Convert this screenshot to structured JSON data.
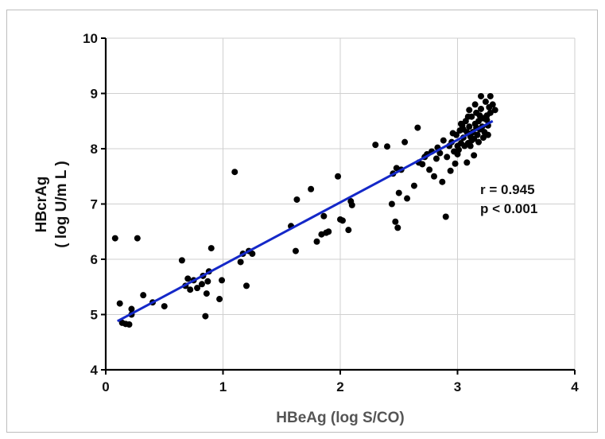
{
  "chart_data": {
    "type": "scatter",
    "xlabel": "HBeAg (log S/CO)",
    "ylabel_line1": "HBcrAg",
    "ylabel_line2": "( log U/m L )",
    "xlim": [
      0,
      4
    ],
    "ylim": [
      4,
      10
    ],
    "x_ticks": [
      "0",
      "1",
      "2",
      "3",
      "4"
    ],
    "y_ticks": [
      "4",
      "5",
      "6",
      "7",
      "8",
      "9",
      "10"
    ],
    "grid": true,
    "annotation_r": "r = 0.945",
    "annotation_p": "p < 0.001",
    "line_color": "#1428c8",
    "point_color": "#000000",
    "regression": {
      "x": [
        0.1,
        3.3
      ],
      "y": [
        4.88,
        8.5
      ]
    },
    "points": [
      [
        0.08,
        6.38
      ],
      [
        0.12,
        5.2
      ],
      [
        0.14,
        4.85
      ],
      [
        0.17,
        4.83
      ],
      [
        0.2,
        4.82
      ],
      [
        0.22,
        5.0
      ],
      [
        0.22,
        5.1
      ],
      [
        0.27,
        6.38
      ],
      [
        0.32,
        5.35
      ],
      [
        0.4,
        5.22
      ],
      [
        0.5,
        5.15
      ],
      [
        0.65,
        5.98
      ],
      [
        0.68,
        5.52
      ],
      [
        0.7,
        5.65
      ],
      [
        0.72,
        5.45
      ],
      [
        0.75,
        5.62
      ],
      [
        0.78,
        5.48
      ],
      [
        0.82,
        5.55
      ],
      [
        0.83,
        5.7
      ],
      [
        0.85,
        4.97
      ],
      [
        0.86,
        5.38
      ],
      [
        0.87,
        5.6
      ],
      [
        0.88,
        5.78
      ],
      [
        0.9,
        6.2
      ],
      [
        0.97,
        5.28
      ],
      [
        0.99,
        5.62
      ],
      [
        1.1,
        7.58
      ],
      [
        1.15,
        5.95
      ],
      [
        1.17,
        6.1
      ],
      [
        1.2,
        5.52
      ],
      [
        1.22,
        6.15
      ],
      [
        1.25,
        6.1
      ],
      [
        1.58,
        6.6
      ],
      [
        1.62,
        6.15
      ],
      [
        1.63,
        7.08
      ],
      [
        1.75,
        7.27
      ],
      [
        1.8,
        6.32
      ],
      [
        1.84,
        6.45
      ],
      [
        1.86,
        6.78
      ],
      [
        1.88,
        6.48
      ],
      [
        1.9,
        6.5
      ],
      [
        1.98,
        7.5
      ],
      [
        2.0,
        6.72
      ],
      [
        2.02,
        6.7
      ],
      [
        2.07,
        6.53
      ],
      [
        2.09,
        7.05
      ],
      [
        2.1,
        6.98
      ],
      [
        2.3,
        8.07
      ],
      [
        2.4,
        8.04
      ],
      [
        2.44,
        7.0
      ],
      [
        2.45,
        7.55
      ],
      [
        2.47,
        6.68
      ],
      [
        2.48,
        7.65
      ],
      [
        2.49,
        6.57
      ],
      [
        2.5,
        7.2
      ],
      [
        2.52,
        7.62
      ],
      [
        2.55,
        8.12
      ],
      [
        2.57,
        7.1
      ],
      [
        2.63,
        7.33
      ],
      [
        2.66,
        8.38
      ],
      [
        2.67,
        7.75
      ],
      [
        2.7,
        7.72
      ],
      [
        2.72,
        7.85
      ],
      [
        2.74,
        7.9
      ],
      [
        2.76,
        7.62
      ],
      [
        2.78,
        7.95
      ],
      [
        2.8,
        7.5
      ],
      [
        2.82,
        7.82
      ],
      [
        2.83,
        8.02
      ],
      [
        2.85,
        7.92
      ],
      [
        2.87,
        7.4
      ],
      [
        2.88,
        8.15
      ],
      [
        2.9,
        6.77
      ],
      [
        2.91,
        7.85
      ],
      [
        2.93,
        8.05
      ],
      [
        2.94,
        7.6
      ],
      [
        2.95,
        8.12
      ],
      [
        2.97,
        7.95
      ],
      [
        2.98,
        7.73
      ],
      [
        2.99,
        8.25
      ],
      [
        3.0,
        8.05
      ],
      [
        3.01,
        7.98
      ],
      [
        3.02,
        8.33
      ],
      [
        3.03,
        8.1
      ],
      [
        3.04,
        8.42
      ],
      [
        3.05,
        8.2
      ],
      [
        3.06,
        8.05
      ],
      [
        3.07,
        8.5
      ],
      [
        3.08,
        8.3
      ],
      [
        3.09,
        8.1
      ],
      [
        3.1,
        8.4
      ],
      [
        3.11,
        8.22
      ],
      [
        3.12,
        8.58
      ],
      [
        3.13,
        8.3
      ],
      [
        3.14,
        8.18
      ],
      [
        3.15,
        8.45
      ],
      [
        3.16,
        8.65
      ],
      [
        3.17,
        8.25
      ],
      [
        3.18,
        8.5
      ],
      [
        3.19,
        8.35
      ],
      [
        3.2,
        8.72
      ],
      [
        3.21,
        8.4
      ],
      [
        3.22,
        8.55
      ],
      [
        3.23,
        8.3
      ],
      [
        3.24,
        8.85
      ],
      [
        3.25,
        8.6
      ],
      [
        3.26,
        8.42
      ],
      [
        3.27,
        8.75
      ],
      [
        3.28,
        8.95
      ],
      [
        3.3,
        8.8
      ],
      [
        3.32,
        8.7
      ],
      [
        3.2,
        8.95
      ],
      [
        3.1,
        8.7
      ],
      [
        3.15,
        8.8
      ],
      [
        3.05,
        8.35
      ],
      [
        3.0,
        7.9
      ],
      [
        3.08,
        7.75
      ],
      [
        3.14,
        7.88
      ],
      [
        3.18,
        8.12
      ],
      [
        3.22,
        8.2
      ],
      [
        3.26,
        8.25
      ],
      [
        3.12,
        8.15
      ],
      [
        2.96,
        8.28
      ],
      [
        3.03,
        8.45
      ],
      [
        3.19,
        8.6
      ],
      [
        3.25,
        8.52
      ],
      [
        3.09,
        8.58
      ],
      [
        3.16,
        8.38
      ],
      [
        3.28,
        8.65
      ],
      [
        3.11,
        8.05
      ]
    ]
  }
}
